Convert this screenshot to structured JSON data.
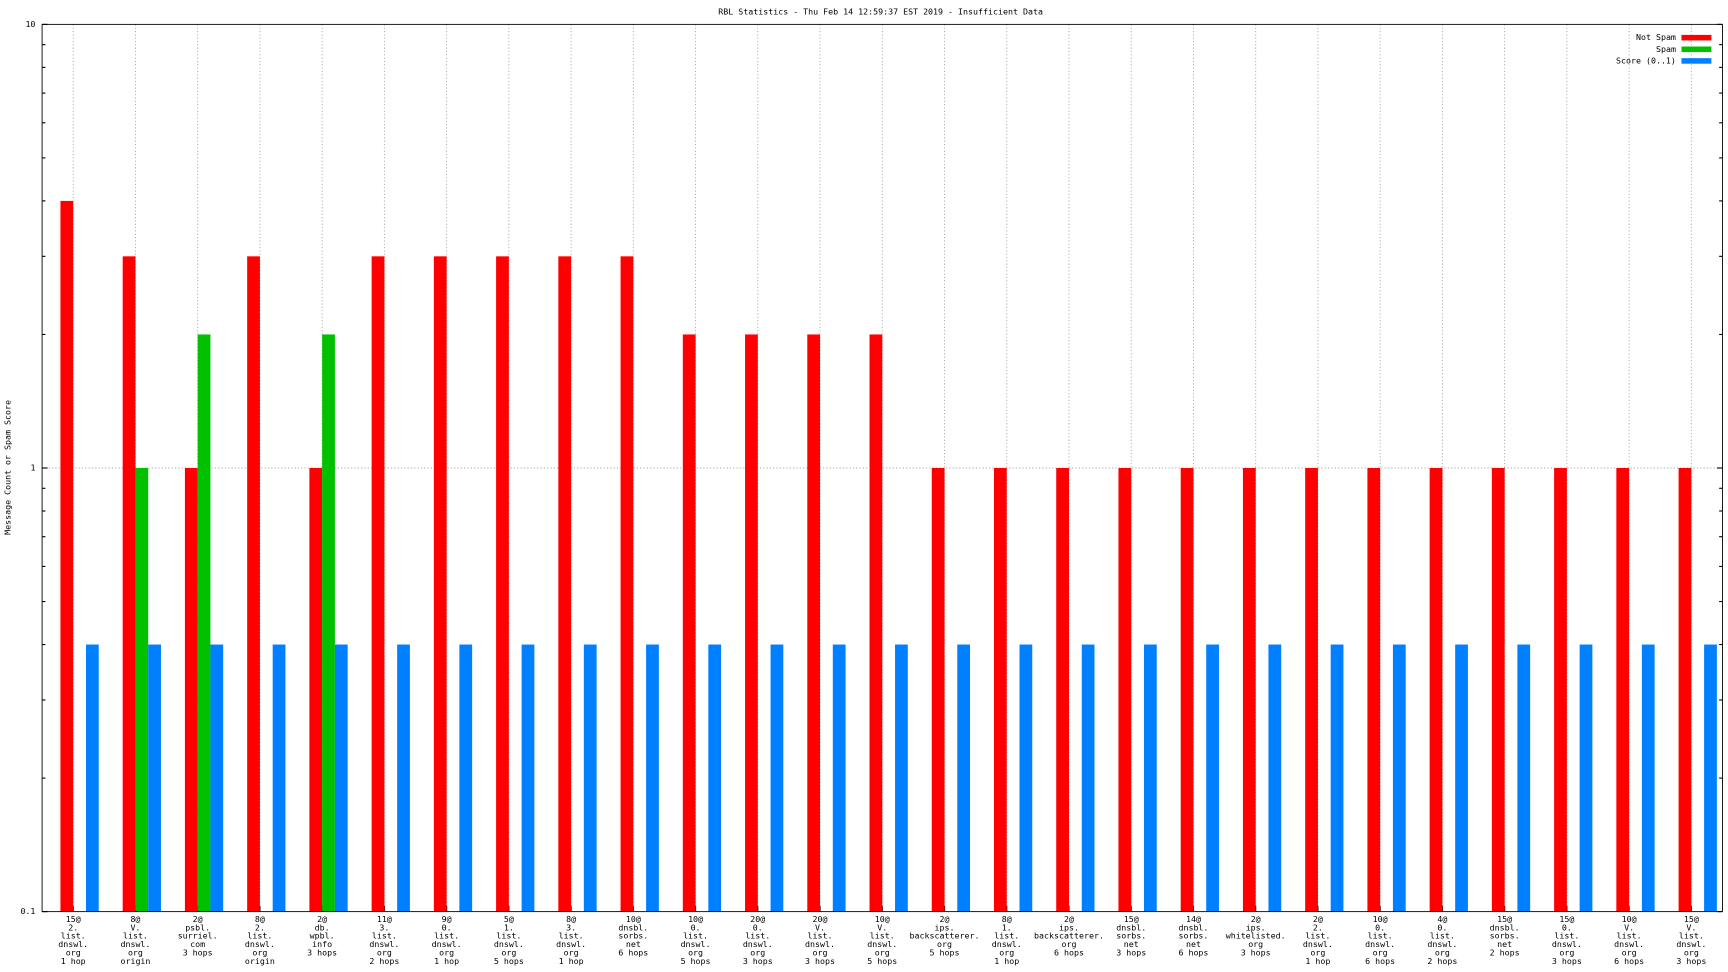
{
  "chart_data": {
    "type": "bar",
    "title": "RBL Statistics - Thu Feb 14 12:59:37 EST 2019 - Insufficient Data",
    "y_label": "Message Count or Spam Score",
    "categories": [
      [
        "15@",
        "2.",
        "list.",
        "dnswl.",
        "org",
        "1 hop"
      ],
      [
        "8@",
        "V.",
        "list.",
        "dnswl.",
        "org",
        "origin"
      ],
      [
        "2@",
        "psbl.",
        "surriel.",
        "com",
        "3 hops"
      ],
      [
        "8@",
        "2.",
        "list.",
        "dnswl.",
        "org",
        "origin"
      ],
      [
        "2@",
        "db.",
        "wpbl.",
        "info",
        "3 hops"
      ],
      [
        "11@",
        "3.",
        "list.",
        "dnswl.",
        "org",
        "2 hops"
      ],
      [
        "9@",
        "0.",
        "list.",
        "dnswl.",
        "org",
        "1 hop"
      ],
      [
        "5@",
        "1.",
        "list.",
        "dnswl.",
        "org",
        "5 hops"
      ],
      [
        "8@",
        "3.",
        "list.",
        "dnswl.",
        "org",
        "1 hop"
      ],
      [
        "10@",
        "dnsbl.",
        "sorbs.",
        "net",
        "6 hops"
      ],
      [
        "10@",
        "0.",
        "list.",
        "dnswl.",
        "org",
        "5 hops"
      ],
      [
        "20@",
        "0.",
        "list.",
        "dnswl.",
        "org",
        "3 hops"
      ],
      [
        "20@",
        "V.",
        "list.",
        "dnswl.",
        "org",
        "3 hops"
      ],
      [
        "10@",
        "V.",
        "list.",
        "dnswl.",
        "org",
        "5 hops"
      ],
      [
        "2@",
        "ips.",
        "backscatterer.",
        "org",
        "5 hops"
      ],
      [
        "8@",
        "1.",
        "list.",
        "dnswl.",
        "org",
        "1 hop"
      ],
      [
        "2@",
        "ips.",
        "backscatterer.",
        "org",
        "6 hops"
      ],
      [
        "15@",
        "dnsbl.",
        "sorbs.",
        "net",
        "3 hops"
      ],
      [
        "14@",
        "dnsbl.",
        "sorbs.",
        "net",
        "6 hops"
      ],
      [
        "2@",
        "ips.",
        "whitelisted.",
        "org",
        "3 hops"
      ],
      [
        "2@",
        "2.",
        "list.",
        "dnswl.",
        "org",
        "1 hop"
      ],
      [
        "10@",
        "0.",
        "list.",
        "dnswl.",
        "org",
        "6 hops"
      ],
      [
        "4@",
        "0.",
        "list.",
        "dnswl.",
        "org",
        "2 hops"
      ],
      [
        "15@",
        "dnsbl.",
        "sorbs.",
        "net",
        "2 hops"
      ],
      [
        "15@",
        "0.",
        "list.",
        "dnswl.",
        "org",
        "3 hops"
      ],
      [
        "10@",
        "V.",
        "list.",
        "dnswl.",
        "org",
        "6 hops"
      ],
      [
        "15@",
        "V.",
        "list.",
        "dnswl.",
        "org",
        "3 hops"
      ]
    ],
    "series": [
      {
        "name": "Not Spam",
        "color": "#ff0000",
        "values": [
          4,
          3,
          1,
          3,
          1,
          3,
          3,
          3,
          3,
          3,
          2,
          2,
          2,
          2,
          1,
          1,
          1,
          1,
          1,
          1,
          1,
          1,
          1,
          1,
          1,
          1,
          1
        ]
      },
      {
        "name": "Spam",
        "color": "#00c000",
        "values": [
          null,
          1,
          2,
          null,
          2,
          null,
          null,
          null,
          null,
          null,
          null,
          null,
          null,
          null,
          null,
          null,
          null,
          null,
          null,
          null,
          null,
          null,
          null,
          null,
          null,
          null,
          null
        ]
      },
      {
        "name": "Score (0..1)",
        "color": "#0080ff",
        "values": [
          0.4,
          0.4,
          0.4,
          0.4,
          0.4,
          0.4,
          0.4,
          0.4,
          0.4,
          0.4,
          0.4,
          0.4,
          0.4,
          0.4,
          0.4,
          0.4,
          0.4,
          0.4,
          0.4,
          0.4,
          0.4,
          0.4,
          0.4,
          0.4,
          0.4,
          0.4,
          0.4
        ]
      }
    ],
    "ylim": [
      0.1,
      10
    ],
    "yticks": [
      0.1,
      1,
      10
    ],
    "log_y": true,
    "grid": true,
    "legend": "top-right"
  }
}
